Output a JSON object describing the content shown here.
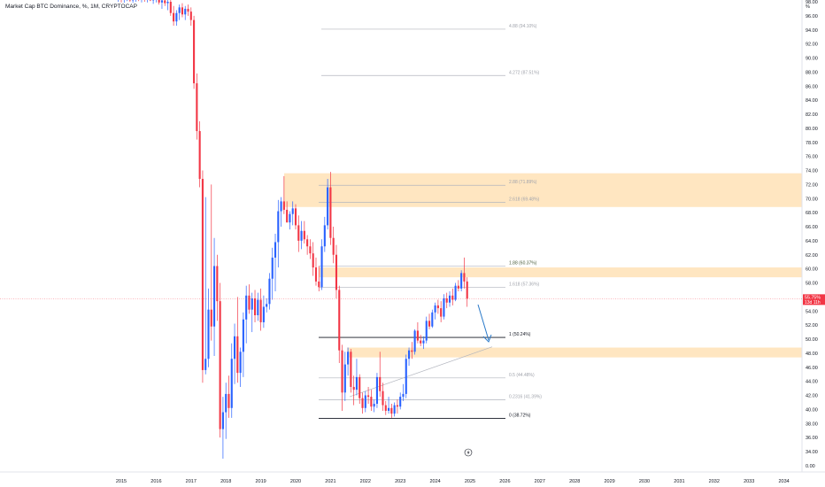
{
  "header": {
    "title": "Market Cap BTC Dominance, %, 1M, CRYPTOCAP"
  },
  "colors": {
    "up": "#2962ff",
    "down": "#f23645",
    "zone": "#ffe0b2",
    "price_tag": "#f23645",
    "arrow": "#2979c9"
  },
  "chart_data": {
    "type": "candlestick",
    "title": "Market Cap BTC Dominance, %, 1M, CRYPTOCAP",
    "y_unit": "%",
    "ylim": [
      0,
      100
    ],
    "y_ticks": [
      "0.00",
      "34.00",
      "36.00",
      "38.00",
      "40.00",
      "42.00",
      "44.00",
      "46.00",
      "48.00",
      "50.00",
      "52.00",
      "54.00",
      "56.00",
      "58.00",
      "60.00",
      "62.00",
      "64.00",
      "66.00",
      "68.00",
      "70.00",
      "72.00",
      "74.00",
      "76.00",
      "78.00",
      "80.00",
      "82.00",
      "84.00",
      "86.00",
      "88.00",
      "90.00",
      "92.00",
      "94.00",
      "96.00",
      "98.00"
    ],
    "x_ticks": [
      "2015",
      "2016",
      "2017",
      "2018",
      "2019",
      "2020",
      "2021",
      "2022",
      "2023",
      "2024",
      "2025",
      "2026",
      "2027",
      "2028",
      "2029",
      "2030",
      "2031",
      "2032",
      "2033",
      "2034"
    ],
    "current_price": {
      "label": "55.75%",
      "countdown": "13d 11h",
      "value": 55.75
    },
    "fib_levels": [
      {
        "label": "4.88 (94.10%)",
        "value": 94.1
      },
      {
        "label": "4.272 (87.51%)",
        "value": 87.51
      },
      {
        "label": "2.88 (71.89%)",
        "value": 71.89
      },
      {
        "label": "2.618 (69.48%)",
        "value": 69.48
      },
      {
        "label": "1.88 (60.37%)",
        "value": 60.37
      },
      {
        "label": "1.618 (57.36%)",
        "value": 57.36
      },
      {
        "label": "1 (50.24%)",
        "value": 50.24
      },
      {
        "label": "0.5 (44.48%)",
        "value": 44.48
      },
      {
        "label": "0.2316 (41.39%)",
        "value": 41.39
      },
      {
        "label": "0 (38.72%)",
        "value": 38.72
      }
    ],
    "zones": [
      {
        "from": 68.8,
        "to": 73.6
      },
      {
        "from": 58.8,
        "to": 60.2
      },
      {
        "from": 47.4,
        "to": 48.8
      }
    ],
    "candles": [
      {
        "t": "2014-12",
        "o": 98.4,
        "h": 98.9,
        "l": 98.0,
        "c": 98.6
      },
      {
        "t": "2015-01",
        "o": 98.6,
        "h": 99.0,
        "l": 97.9,
        "c": 98.3
      },
      {
        "t": "2015-02",
        "o": 98.3,
        "h": 98.8,
        "l": 97.8,
        "c": 98.5
      },
      {
        "t": "2015-03",
        "o": 98.5,
        "h": 99.0,
        "l": 98.1,
        "c": 98.7
      },
      {
        "t": "2015-04",
        "o": 98.7,
        "h": 99.0,
        "l": 98.0,
        "c": 98.2
      },
      {
        "t": "2015-05",
        "o": 98.2,
        "h": 98.7,
        "l": 97.8,
        "c": 98.4
      },
      {
        "t": "2015-06",
        "o": 98.4,
        "h": 98.9,
        "l": 98.0,
        "c": 98.6
      },
      {
        "t": "2015-07",
        "o": 98.6,
        "h": 99.0,
        "l": 98.1,
        "c": 98.3
      },
      {
        "t": "2015-08",
        "o": 98.3,
        "h": 98.8,
        "l": 97.9,
        "c": 98.5
      },
      {
        "t": "2015-09",
        "o": 98.5,
        "h": 98.9,
        "l": 98.0,
        "c": 98.4
      },
      {
        "t": "2015-10",
        "o": 98.4,
        "h": 98.8,
        "l": 97.9,
        "c": 98.6
      },
      {
        "t": "2015-11",
        "o": 98.6,
        "h": 99.0,
        "l": 98.1,
        "c": 98.2
      },
      {
        "t": "2015-12",
        "o": 98.2,
        "h": 98.6,
        "l": 97.7,
        "c": 98.4
      },
      {
        "t": "2016-01",
        "o": 98.4,
        "h": 98.9,
        "l": 97.9,
        "c": 98.5
      },
      {
        "t": "2016-02",
        "o": 98.5,
        "h": 98.9,
        "l": 97.6,
        "c": 97.9
      },
      {
        "t": "2016-03",
        "o": 97.9,
        "h": 98.4,
        "l": 97.0,
        "c": 98.2
      },
      {
        "t": "2016-04",
        "o": 98.2,
        "h": 98.6,
        "l": 97.4,
        "c": 97.8
      },
      {
        "t": "2016-05",
        "o": 97.8,
        "h": 98.3,
        "l": 96.8,
        "c": 98.0
      },
      {
        "t": "2016-06",
        "o": 98.0,
        "h": 98.4,
        "l": 96.0,
        "c": 96.4
      },
      {
        "t": "2016-07",
        "o": 96.4,
        "h": 97.4,
        "l": 94.6,
        "c": 95.2
      },
      {
        "t": "2016-08",
        "o": 95.2,
        "h": 96.8,
        "l": 94.6,
        "c": 96.4
      },
      {
        "t": "2016-09",
        "o": 96.4,
        "h": 97.6,
        "l": 95.4,
        "c": 97.2
      },
      {
        "t": "2016-10",
        "o": 97.2,
        "h": 97.8,
        "l": 95.8,
        "c": 96.2
      },
      {
        "t": "2016-11",
        "o": 96.2,
        "h": 97.4,
        "l": 95.4,
        "c": 97.0
      },
      {
        "t": "2016-12",
        "o": 97.0,
        "h": 97.6,
        "l": 96.0,
        "c": 96.6
      },
      {
        "t": "2017-01",
        "o": 96.6,
        "h": 97.2,
        "l": 94.6,
        "c": 95.4
      },
      {
        "t": "2017-02",
        "o": 95.4,
        "h": 96.0,
        "l": 85.6,
        "c": 86.4
      },
      {
        "t": "2017-03",
        "o": 86.4,
        "h": 87.8,
        "l": 78.4,
        "c": 79.6
      },
      {
        "t": "2017-04",
        "o": 79.6,
        "h": 81.0,
        "l": 71.6,
        "c": 72.8
      },
      {
        "t": "2017-05",
        "o": 72.8,
        "h": 74.0,
        "l": 43.8,
        "c": 45.6
      },
      {
        "t": "2017-06",
        "o": 45.6,
        "h": 70.2,
        "l": 45.0,
        "c": 47.2
      },
      {
        "t": "2017-07",
        "o": 47.2,
        "h": 57.2,
        "l": 46.0,
        "c": 54.2
      },
      {
        "t": "2017-08",
        "o": 54.2,
        "h": 72.0,
        "l": 49.8,
        "c": 51.8
      },
      {
        "t": "2017-09",
        "o": 51.8,
        "h": 64.4,
        "l": 47.6,
        "c": 60.4
      },
      {
        "t": "2017-10",
        "o": 60.4,
        "h": 62.0,
        "l": 52.6,
        "c": 55.4
      },
      {
        "t": "2017-11",
        "o": 55.4,
        "h": 58.0,
        "l": 36.0,
        "c": 37.2
      },
      {
        "t": "2017-12",
        "o": 37.2,
        "h": 41.8,
        "l": 33.0,
        "c": 39.6
      },
      {
        "t": "2018-01",
        "o": 39.6,
        "h": 43.8,
        "l": 35.8,
        "c": 42.2
      },
      {
        "t": "2018-02",
        "o": 42.2,
        "h": 44.8,
        "l": 38.8,
        "c": 40.2
      },
      {
        "t": "2018-03",
        "o": 40.2,
        "h": 49.4,
        "l": 38.8,
        "c": 47.2
      },
      {
        "t": "2018-04",
        "o": 47.2,
        "h": 52.2,
        "l": 43.6,
        "c": 50.4
      },
      {
        "t": "2018-05",
        "o": 50.4,
        "h": 56.0,
        "l": 43.8,
        "c": 45.2
      },
      {
        "t": "2018-06",
        "o": 45.2,
        "h": 48.8,
        "l": 43.2,
        "c": 48.2
      },
      {
        "t": "2018-07",
        "o": 48.2,
        "h": 53.8,
        "l": 44.6,
        "c": 52.8
      },
      {
        "t": "2018-08",
        "o": 52.8,
        "h": 57.6,
        "l": 49.4,
        "c": 56.2
      },
      {
        "t": "2018-09",
        "o": 56.2,
        "h": 57.8,
        "l": 53.6,
        "c": 54.2
      },
      {
        "t": "2018-10",
        "o": 54.2,
        "h": 56.6,
        "l": 51.0,
        "c": 55.8
      },
      {
        "t": "2018-11",
        "o": 55.8,
        "h": 57.0,
        "l": 52.4,
        "c": 53.4
      },
      {
        "t": "2018-12",
        "o": 53.4,
        "h": 56.6,
        "l": 52.6,
        "c": 55.6
      },
      {
        "t": "2019-01",
        "o": 55.6,
        "h": 57.2,
        "l": 51.2,
        "c": 52.4
      },
      {
        "t": "2019-02",
        "o": 52.4,
        "h": 56.2,
        "l": 51.6,
        "c": 54.6
      },
      {
        "t": "2019-03",
        "o": 54.6,
        "h": 55.8,
        "l": 53.8,
        "c": 55.0
      },
      {
        "t": "2019-04",
        "o": 55.0,
        "h": 59.4,
        "l": 54.2,
        "c": 58.6
      },
      {
        "t": "2019-05",
        "o": 58.6,
        "h": 63.0,
        "l": 55.6,
        "c": 61.6
      },
      {
        "t": "2019-06",
        "o": 61.6,
        "h": 65.0,
        "l": 56.8,
        "c": 63.8
      },
      {
        "t": "2019-07",
        "o": 63.8,
        "h": 69.8,
        "l": 60.2,
        "c": 68.2
      },
      {
        "t": "2019-08",
        "o": 68.2,
        "h": 70.2,
        "l": 66.0,
        "c": 69.6
      },
      {
        "t": "2019-09",
        "o": 69.6,
        "h": 73.2,
        "l": 67.8,
        "c": 68.4
      },
      {
        "t": "2019-10",
        "o": 68.4,
        "h": 69.6,
        "l": 66.6,
        "c": 66.6
      },
      {
        "t": "2019-11",
        "o": 66.6,
        "h": 68.2,
        "l": 65.6,
        "c": 67.8
      },
      {
        "t": "2019-12",
        "o": 67.8,
        "h": 69.6,
        "l": 66.2,
        "c": 68.6
      },
      {
        "t": "2020-01",
        "o": 68.6,
        "h": 69.2,
        "l": 65.6,
        "c": 66.2
      },
      {
        "t": "2020-02",
        "o": 66.2,
        "h": 67.6,
        "l": 62.4,
        "c": 64.0
      },
      {
        "t": "2020-03",
        "o": 64.0,
        "h": 66.8,
        "l": 62.8,
        "c": 65.4
      },
      {
        "t": "2020-04",
        "o": 65.4,
        "h": 66.8,
        "l": 63.6,
        "c": 64.2
      },
      {
        "t": "2020-05",
        "o": 64.2,
        "h": 64.8,
        "l": 62.0,
        "c": 63.2
      },
      {
        "t": "2020-06",
        "o": 63.2,
        "h": 64.2,
        "l": 61.4,
        "c": 62.2
      },
      {
        "t": "2020-07",
        "o": 62.2,
        "h": 63.8,
        "l": 59.0,
        "c": 60.2
      },
      {
        "t": "2020-08",
        "o": 60.2,
        "h": 61.6,
        "l": 57.6,
        "c": 58.2
      },
      {
        "t": "2020-09",
        "o": 58.2,
        "h": 60.4,
        "l": 56.8,
        "c": 57.4
      },
      {
        "t": "2020-10",
        "o": 57.4,
        "h": 64.2,
        "l": 57.0,
        "c": 63.2
      },
      {
        "t": "2020-11",
        "o": 63.2,
        "h": 67.4,
        "l": 62.4,
        "c": 66.2
      },
      {
        "t": "2020-12",
        "o": 66.2,
        "h": 72.8,
        "l": 65.6,
        "c": 71.6
      },
      {
        "t": "2021-01",
        "o": 71.6,
        "h": 73.8,
        "l": 63.4,
        "c": 64.4
      },
      {
        "t": "2021-02",
        "o": 64.4,
        "h": 66.0,
        "l": 60.8,
        "c": 62.0
      },
      {
        "t": "2021-03",
        "o": 62.0,
        "h": 63.4,
        "l": 55.8,
        "c": 57.0
      },
      {
        "t": "2021-04",
        "o": 57.0,
        "h": 57.6,
        "l": 46.6,
        "c": 48.4
      },
      {
        "t": "2021-05",
        "o": 48.4,
        "h": 49.2,
        "l": 39.8,
        "c": 42.4
      },
      {
        "t": "2021-06",
        "o": 42.4,
        "h": 48.2,
        "l": 41.2,
        "c": 46.4
      },
      {
        "t": "2021-07",
        "o": 46.4,
        "h": 48.8,
        "l": 44.8,
        "c": 48.2
      },
      {
        "t": "2021-08",
        "o": 48.2,
        "h": 48.6,
        "l": 42.4,
        "c": 43.2
      },
      {
        "t": "2021-09",
        "o": 43.2,
        "h": 44.8,
        "l": 40.6,
        "c": 42.8
      },
      {
        "t": "2021-10",
        "o": 42.8,
        "h": 47.2,
        "l": 42.0,
        "c": 44.6
      },
      {
        "t": "2021-11",
        "o": 44.6,
        "h": 45.0,
        "l": 40.8,
        "c": 41.6
      },
      {
        "t": "2021-12",
        "o": 41.6,
        "h": 42.4,
        "l": 39.4,
        "c": 40.2
      },
      {
        "t": "2022-01",
        "o": 40.2,
        "h": 42.6,
        "l": 39.6,
        "c": 42.0
      },
      {
        "t": "2022-02",
        "o": 42.0,
        "h": 43.2,
        "l": 40.8,
        "c": 41.8
      },
      {
        "t": "2022-03",
        "o": 41.8,
        "h": 42.8,
        "l": 39.8,
        "c": 40.4
      },
      {
        "t": "2022-04",
        "o": 40.4,
        "h": 41.4,
        "l": 39.6,
        "c": 40.8
      },
      {
        "t": "2022-05",
        "o": 40.8,
        "h": 45.2,
        "l": 40.2,
        "c": 44.6
      },
      {
        "t": "2022-06",
        "o": 44.6,
        "h": 48.2,
        "l": 41.8,
        "c": 42.6
      },
      {
        "t": "2022-07",
        "o": 42.6,
        "h": 43.8,
        "l": 39.8,
        "c": 40.6
      },
      {
        "t": "2022-08",
        "o": 40.6,
        "h": 41.2,
        "l": 39.2,
        "c": 39.8
      },
      {
        "t": "2022-09",
        "o": 39.8,
        "h": 41.8,
        "l": 39.4,
        "c": 40.2
      },
      {
        "t": "2022-10",
        "o": 40.2,
        "h": 40.8,
        "l": 38.8,
        "c": 39.4
      },
      {
        "t": "2022-11",
        "o": 39.4,
        "h": 41.0,
        "l": 39.0,
        "c": 40.6
      },
      {
        "t": "2022-12",
        "o": 40.6,
        "h": 41.4,
        "l": 39.4,
        "c": 40.4
      },
      {
        "t": "2023-01",
        "o": 40.4,
        "h": 42.4,
        "l": 40.0,
        "c": 41.8
      },
      {
        "t": "2023-02",
        "o": 41.8,
        "h": 43.6,
        "l": 41.2,
        "c": 42.2
      },
      {
        "t": "2023-03",
        "o": 42.2,
        "h": 47.8,
        "l": 41.6,
        "c": 47.2
      },
      {
        "t": "2023-04",
        "o": 47.2,
        "h": 48.8,
        "l": 46.2,
        "c": 48.4
      },
      {
        "t": "2023-05",
        "o": 48.4,
        "h": 49.6,
        "l": 47.2,
        "c": 48.2
      },
      {
        "t": "2023-06",
        "o": 48.2,
        "h": 51.4,
        "l": 47.8,
        "c": 51.2
      },
      {
        "t": "2023-07",
        "o": 51.2,
        "h": 52.4,
        "l": 49.4,
        "c": 49.8
      },
      {
        "t": "2023-08",
        "o": 49.8,
        "h": 50.6,
        "l": 49.0,
        "c": 49.4
      },
      {
        "t": "2023-09",
        "o": 49.4,
        "h": 50.4,
        "l": 48.6,
        "c": 49.8
      },
      {
        "t": "2023-10",
        "o": 49.8,
        "h": 53.2,
        "l": 49.4,
        "c": 52.6
      },
      {
        "t": "2023-11",
        "o": 52.6,
        "h": 53.6,
        "l": 51.4,
        "c": 51.8
      },
      {
        "t": "2023-12",
        "o": 51.8,
        "h": 54.2,
        "l": 51.6,
        "c": 53.8
      },
      {
        "t": "2024-01",
        "o": 53.8,
        "h": 55.2,
        "l": 52.8,
        "c": 54.8
      },
      {
        "t": "2024-02",
        "o": 54.8,
        "h": 55.6,
        "l": 53.6,
        "c": 54.4
      },
      {
        "t": "2024-03",
        "o": 54.4,
        "h": 55.4,
        "l": 52.4,
        "c": 53.2
      },
      {
        "t": "2024-04",
        "o": 53.2,
        "h": 56.4,
        "l": 52.8,
        "c": 55.8
      },
      {
        "t": "2024-05",
        "o": 55.8,
        "h": 56.6,
        "l": 54.4,
        "c": 55.2
      },
      {
        "t": "2024-06",
        "o": 55.2,
        "h": 56.8,
        "l": 54.6,
        "c": 56.2
      },
      {
        "t": "2024-07",
        "o": 56.2,
        "h": 57.2,
        "l": 54.8,
        "c": 55.6
      },
      {
        "t": "2024-08",
        "o": 55.6,
        "h": 58.0,
        "l": 55.4,
        "c": 57.6
      },
      {
        "t": "2024-09",
        "o": 57.6,
        "h": 58.4,
        "l": 56.8,
        "c": 57.2
      },
      {
        "t": "2024-10",
        "o": 57.2,
        "h": 59.8,
        "l": 56.8,
        "c": 59.4
      },
      {
        "t": "2024-11",
        "o": 59.4,
        "h": 61.6,
        "l": 57.2,
        "c": 58.2
      },
      {
        "t": "2024-12",
        "o": 58.2,
        "h": 58.8,
        "l": 54.6,
        "c": 55.75
      }
    ]
  }
}
